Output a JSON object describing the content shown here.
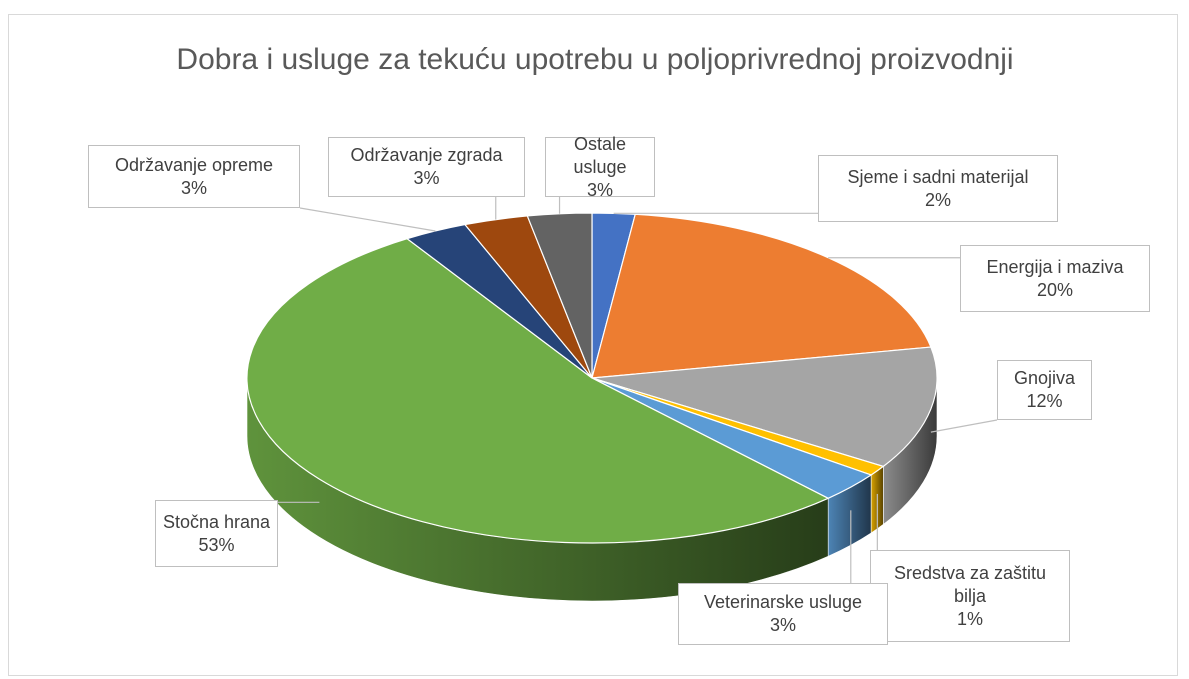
{
  "chart_data": {
    "type": "pie3d",
    "title": "Dobra i usluge za tekuću upotrebu u poljoprivrednoj proizvodnji",
    "categories": [
      "Sjeme i sadni materijal",
      "Energija i maziva",
      "Gnojiva",
      "Sredstva za zaštitu bilja",
      "Veterinarske usluge",
      "Stočna hrana",
      "Održavanje opreme",
      "Održavanje zgrada",
      "Ostale usluge"
    ],
    "values": [
      2,
      20,
      12,
      1,
      3,
      53,
      3,
      3,
      3
    ],
    "value_labels": [
      "2%",
      "20%",
      "12%",
      "1%",
      "3%",
      "53%",
      "3%",
      "3%",
      "3%"
    ],
    "colors": [
      "#4472c4",
      "#ed7d31",
      "#a5a5a5",
      "#ffc000",
      "#5b9bd5",
      "#70ad47",
      "#264478",
      "#9e480e",
      "#636363"
    ]
  }
}
